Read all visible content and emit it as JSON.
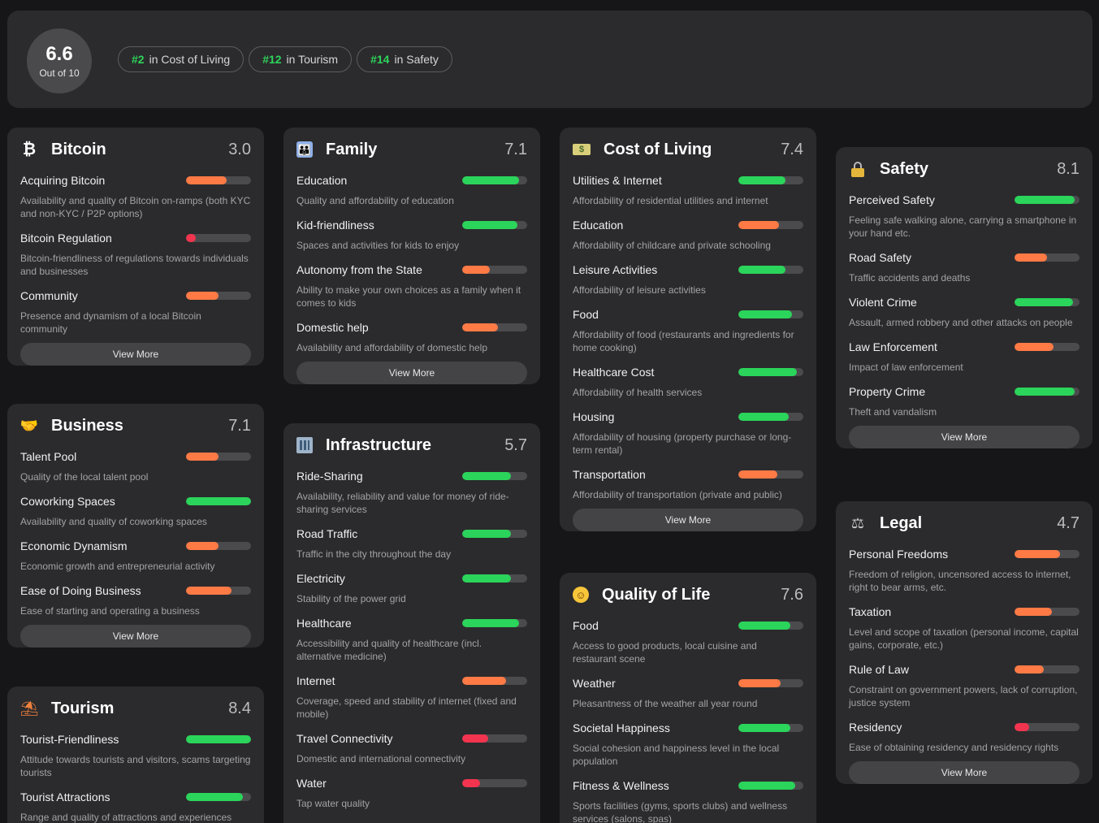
{
  "summary": {
    "score": "6.6",
    "score_caption": "Out of 10",
    "ranks": [
      {
        "rank": "#2",
        "label": "in Cost of Living"
      },
      {
        "rank": "#12",
        "label": "in Tourism"
      },
      {
        "rank": "#14",
        "label": "in Safety"
      }
    ]
  },
  "colors": {
    "green": "#2bd45a",
    "orange": "#ff7a45",
    "red": "#f2344f"
  },
  "view_more_label": "View More",
  "cards": {
    "bitcoin": {
      "icon": "bitcoin-icon",
      "title": "Bitcoin",
      "score": "3.0",
      "items": [
        {
          "name": "Acquiring Bitcoin",
          "desc": "Availability and quality of Bitcoin on-ramps (both KYC and non-KYC / P2P options)",
          "level": 0.62,
          "color": "orange"
        },
        {
          "name": "Bitcoin Regulation",
          "desc": "Bitcoin-friendliness of regulations towards individuals and businesses",
          "level": 0.15,
          "color": "red"
        },
        {
          "name": "Community",
          "desc": "Presence and dynamism of a local Bitcoin community",
          "level": 0.5,
          "color": "orange"
        }
      ]
    },
    "business": {
      "icon": "handshake-icon",
      "title": "Business",
      "score": "7.1",
      "items": [
        {
          "name": "Talent Pool",
          "desc": "Quality of the local talent pool",
          "level": 0.5,
          "color": "orange"
        },
        {
          "name": "Coworking Spaces",
          "desc": "Availability and quality of coworking spaces",
          "level": 1.0,
          "color": "green"
        },
        {
          "name": "Economic Dynamism",
          "desc": "Economic growth and entrepreneurial activity",
          "level": 0.5,
          "color": "orange"
        },
        {
          "name": "Ease of Doing Business",
          "desc": "Ease of starting and operating a business",
          "level": 0.7,
          "color": "orange"
        }
      ]
    },
    "tourism": {
      "icon": "beach-umbrella-icon",
      "title": "Tourism",
      "score": "8.4",
      "items": [
        {
          "name": "Tourist-Friendliness",
          "desc": "Attitude towards tourists and visitors, scams targeting tourists",
          "level": 1.0,
          "color": "green"
        },
        {
          "name": "Tourist Attractions",
          "desc": "Range and quality of attractions and experiences",
          "level": 0.88,
          "color": "green"
        }
      ]
    },
    "family": {
      "icon": "family-icon",
      "title": "Family",
      "score": "7.1",
      "items": [
        {
          "name": "Education",
          "desc": "Quality and affordability of education",
          "level": 0.88,
          "color": "green"
        },
        {
          "name": "Kid-friendliness",
          "desc": "Spaces and activities for kids to enjoy",
          "level": 0.85,
          "color": "green"
        },
        {
          "name": "Autonomy from the State",
          "desc": "Ability to make your own choices as a family when it comes to kids",
          "level": 0.42,
          "color": "orange"
        },
        {
          "name": "Domestic help",
          "desc": "Availability and affordability of domestic help",
          "level": 0.55,
          "color": "orange"
        }
      ]
    },
    "infrastructure": {
      "icon": "building-icon",
      "title": "Infrastructure",
      "score": "5.7",
      "items": [
        {
          "name": "Ride-Sharing",
          "desc": "Availability, reliability and value for money of ride-sharing services",
          "level": 0.75,
          "color": "green"
        },
        {
          "name": "Road Traffic",
          "desc": "Traffic in the city throughout the day",
          "level": 0.75,
          "color": "green"
        },
        {
          "name": "Electricity",
          "desc": "Stability of the power grid",
          "level": 0.75,
          "color": "green"
        },
        {
          "name": "Healthcare",
          "desc": "Accessibility and quality of healthcare (incl. alternative medicine)",
          "level": 0.88,
          "color": "green"
        },
        {
          "name": "Internet",
          "desc": "Coverage, speed and stability of internet (fixed and mobile)",
          "level": 0.68,
          "color": "orange"
        },
        {
          "name": "Travel Connectivity",
          "desc": "Domestic and international connectivity",
          "level": 0.4,
          "color": "red"
        },
        {
          "name": "Water",
          "desc": "Tap water quality",
          "level": 0.28,
          "color": "red"
        }
      ]
    },
    "cost_of_living": {
      "icon": "money-icon",
      "title": "Cost of Living",
      "score": "7.4",
      "items": [
        {
          "name": "Utilities & Internet",
          "desc": "Affordability of residential utilities and internet",
          "level": 0.72,
          "color": "green"
        },
        {
          "name": "Education",
          "desc": "Affordability of childcare and private schooling",
          "level": 0.62,
          "color": "orange"
        },
        {
          "name": "Leisure Activities",
          "desc": "Affordability of leisure activities",
          "level": 0.72,
          "color": "green"
        },
        {
          "name": "Food",
          "desc": "Affordability of food (restaurants and ingredients for home cooking)",
          "level": 0.82,
          "color": "green"
        },
        {
          "name": "Healthcare Cost",
          "desc": "Affordability of health services",
          "level": 0.9,
          "color": "green"
        },
        {
          "name": "Housing",
          "desc": "Affordability of housing (property purchase or long-term rental)",
          "level": 0.78,
          "color": "green"
        },
        {
          "name": "Transportation",
          "desc": "Affordability of transportation (private and public)",
          "level": 0.6,
          "color": "orange"
        }
      ]
    },
    "quality_of_life": {
      "icon": "smile-icon",
      "title": "Quality of Life",
      "score": "7.6",
      "items": [
        {
          "name": "Food",
          "desc": "Access to good products, local cuisine and restaurant scene",
          "level": 0.8,
          "color": "green"
        },
        {
          "name": "Weather",
          "desc": "Pleasantness of the weather all year round",
          "level": 0.65,
          "color": "orange"
        },
        {
          "name": "Societal Happiness",
          "desc": "Social cohesion and happiness level in the local population",
          "level": 0.8,
          "color": "green"
        },
        {
          "name": "Fitness & Wellness",
          "desc": "Sports facilities (gyms, sports clubs) and wellness services (salons, spas)",
          "level": 0.88,
          "color": "green"
        }
      ]
    },
    "safety": {
      "icon": "lock-icon",
      "title": "Safety",
      "score": "8.1",
      "items": [
        {
          "name": "Perceived Safety",
          "desc": "Feeling safe walking alone, carrying a smartphone in your hand etc.",
          "level": 0.92,
          "color": "green"
        },
        {
          "name": "Road Safety",
          "desc": "Traffic accidents and deaths",
          "level": 0.5,
          "color": "orange"
        },
        {
          "name": "Violent Crime",
          "desc": "Assault, armed robbery and other attacks on people",
          "level": 0.9,
          "color": "green"
        },
        {
          "name": "Law Enforcement",
          "desc": "Impact of law enforcement",
          "level": 0.6,
          "color": "orange"
        },
        {
          "name": "Property Crime",
          "desc": "Theft and vandalism",
          "level": 0.92,
          "color": "green"
        }
      ]
    },
    "legal": {
      "icon": "scale-icon",
      "title": "Legal",
      "score": "4.7",
      "items": [
        {
          "name": "Personal Freedoms",
          "desc": "Freedom of religion, uncensored access to internet, right to bear arms, etc.",
          "level": 0.7,
          "color": "orange"
        },
        {
          "name": "Taxation",
          "desc": "Level and scope of taxation (personal income, capital gains, corporate, etc.)",
          "level": 0.58,
          "color": "orange"
        },
        {
          "name": "Rule of Law",
          "desc": "Constraint on government powers, lack of corruption, justice system",
          "level": 0.45,
          "color": "orange"
        },
        {
          "name": "Residency",
          "desc": "Ease of obtaining residency and residency rights",
          "level": 0.22,
          "color": "red"
        }
      ]
    }
  }
}
